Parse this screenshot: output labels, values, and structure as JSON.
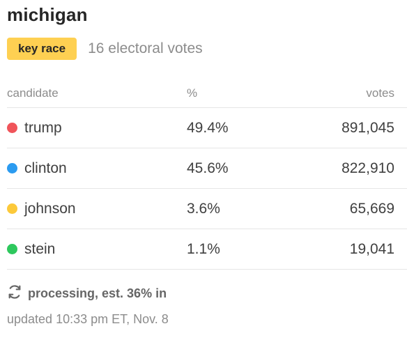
{
  "race": {
    "state": "michigan",
    "badge_label": "key race",
    "electoral_votes_text": "16 electoral votes"
  },
  "table": {
    "headers": {
      "candidate": "candidate",
      "percent": "%",
      "votes": "votes"
    },
    "rows": [
      {
        "name": "trump",
        "percent": "49.4%",
        "votes": "891,045",
        "color": "#f0545a"
      },
      {
        "name": "clinton",
        "percent": "45.6%",
        "votes": "822,910",
        "color": "#2b9bf0"
      },
      {
        "name": "johnson",
        "percent": "3.6%",
        "votes": "65,669",
        "color": "#fcc93a"
      },
      {
        "name": "stein",
        "percent": "1.1%",
        "votes": "19,041",
        "color": "#2ec85d"
      }
    ]
  },
  "status": {
    "icon": "refresh-icon",
    "text": "processing, est. 36% in",
    "updated": "updated 10:33 pm ET, Nov. 8"
  },
  "colors": {
    "badge_background": "#fed052",
    "muted_text": "#8c8c8c",
    "divider": "#e6e6e6"
  }
}
